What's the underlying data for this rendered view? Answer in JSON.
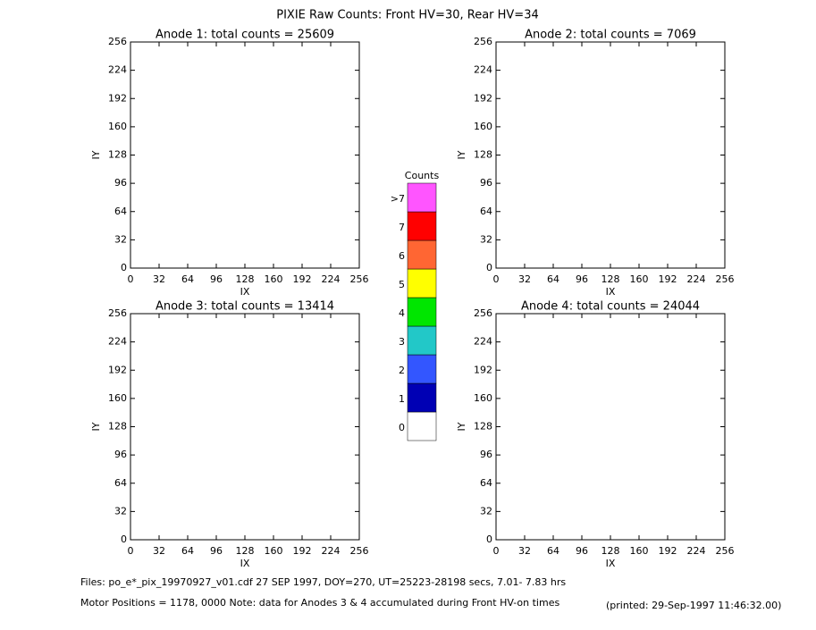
{
  "title": "PIXIE Raw Counts:  Front HV=30, Rear HV=34",
  "chart_data": [
    {
      "type": "heatmap",
      "title": "Anode 1: total counts = 25609",
      "xlabel": "IX",
      "ylabel": "IY",
      "xlim": [
        0,
        256
      ],
      "ylim": [
        0,
        256
      ],
      "xticks": [
        0,
        32,
        64,
        96,
        128,
        160,
        192,
        224,
        256
      ],
      "yticks": [
        0,
        32,
        64,
        96,
        128,
        160,
        192,
        224,
        256
      ]
    },
    {
      "type": "heatmap",
      "title": "Anode 2: total counts = 7069",
      "xlabel": "IX",
      "ylabel": "IY",
      "xlim": [
        0,
        256
      ],
      "ylim": [
        0,
        256
      ],
      "xticks": [
        0,
        32,
        64,
        96,
        128,
        160,
        192,
        224,
        256
      ],
      "yticks": [
        0,
        32,
        64,
        96,
        128,
        160,
        192,
        224,
        256
      ]
    },
    {
      "type": "heatmap",
      "title": "Anode 3: total counts = 13414",
      "xlabel": "IX",
      "ylabel": "IY",
      "xlim": [
        0,
        256
      ],
      "ylim": [
        0,
        256
      ],
      "xticks": [
        0,
        32,
        64,
        96,
        128,
        160,
        192,
        224,
        256
      ],
      "yticks": [
        0,
        32,
        64,
        96,
        128,
        160,
        192,
        224,
        256
      ]
    },
    {
      "type": "heatmap",
      "title": "Anode 4: total counts = 24044",
      "xlabel": "IX",
      "ylabel": "IY",
      "xlim": [
        0,
        256
      ],
      "ylim": [
        0,
        256
      ],
      "xticks": [
        0,
        32,
        64,
        96,
        128,
        160,
        192,
        224,
        256
      ],
      "yticks": [
        0,
        32,
        64,
        96,
        128,
        160,
        192,
        224,
        256
      ]
    }
  ],
  "colorbar": {
    "title": "Counts",
    "levels": [
      0,
      1,
      2,
      3,
      4,
      5,
      6,
      7,
      ">7"
    ],
    "colors": [
      "#ffffff",
      "#0000b4",
      "#3356ff",
      "#22c8c8",
      "#00e600",
      "#ffff00",
      "#ff6633",
      "#ff0000",
      "#ff55ff"
    ]
  },
  "footer": {
    "files": "Files: po_e*_pix_19970927_v01.cdf    27 SEP 1997, DOY=270, UT=25223-28198 secs,  7.01- 7.83 hrs",
    "motor": "Motor Positions = 1178, 0000    Note: data for Anodes 3 & 4 accumulated during Front HV-on times",
    "printed": "(printed: 29-Sep-1997 11:46:32.00)"
  }
}
